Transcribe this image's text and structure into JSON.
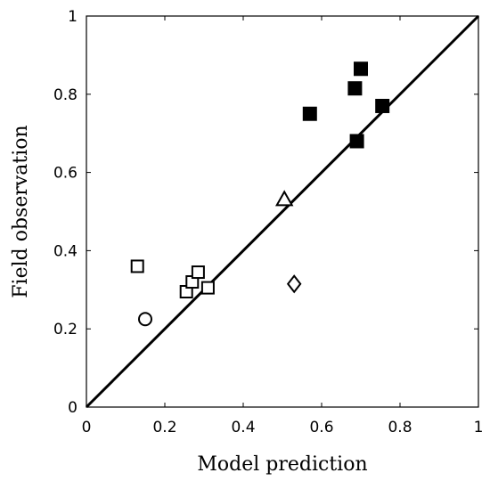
{
  "chart_data": {
    "type": "scatter",
    "xlabel": "Model prediction",
    "ylabel": "Field observation",
    "xlim": [
      0,
      1
    ],
    "ylim": [
      0,
      1
    ],
    "xticks": [
      0,
      0.2,
      0.4,
      0.6,
      0.8,
      1
    ],
    "yticks": [
      0,
      0.2,
      0.4,
      0.6,
      0.8,
      1
    ],
    "grid": false,
    "reference_line": {
      "from": [
        0,
        0
      ],
      "to": [
        1,
        1
      ]
    },
    "series": [
      {
        "marker": "filled-square",
        "points": [
          {
            "x": 0.57,
            "y": 0.75
          },
          {
            "x": 0.685,
            "y": 0.815
          },
          {
            "x": 0.7,
            "y": 0.865
          },
          {
            "x": 0.755,
            "y": 0.77
          },
          {
            "x": 0.69,
            "y": 0.68
          }
        ]
      },
      {
        "marker": "open-square",
        "points": [
          {
            "x": 0.13,
            "y": 0.36
          },
          {
            "x": 0.255,
            "y": 0.295
          },
          {
            "x": 0.27,
            "y": 0.32
          },
          {
            "x": 0.285,
            "y": 0.345
          },
          {
            "x": 0.31,
            "y": 0.305
          }
        ]
      },
      {
        "marker": "open-circle",
        "points": [
          {
            "x": 0.15,
            "y": 0.225
          }
        ]
      },
      {
        "marker": "open-triangle",
        "points": [
          {
            "x": 0.505,
            "y": 0.53
          }
        ]
      },
      {
        "marker": "open-diamond",
        "points": [
          {
            "x": 0.53,
            "y": 0.315
          }
        ]
      }
    ]
  }
}
